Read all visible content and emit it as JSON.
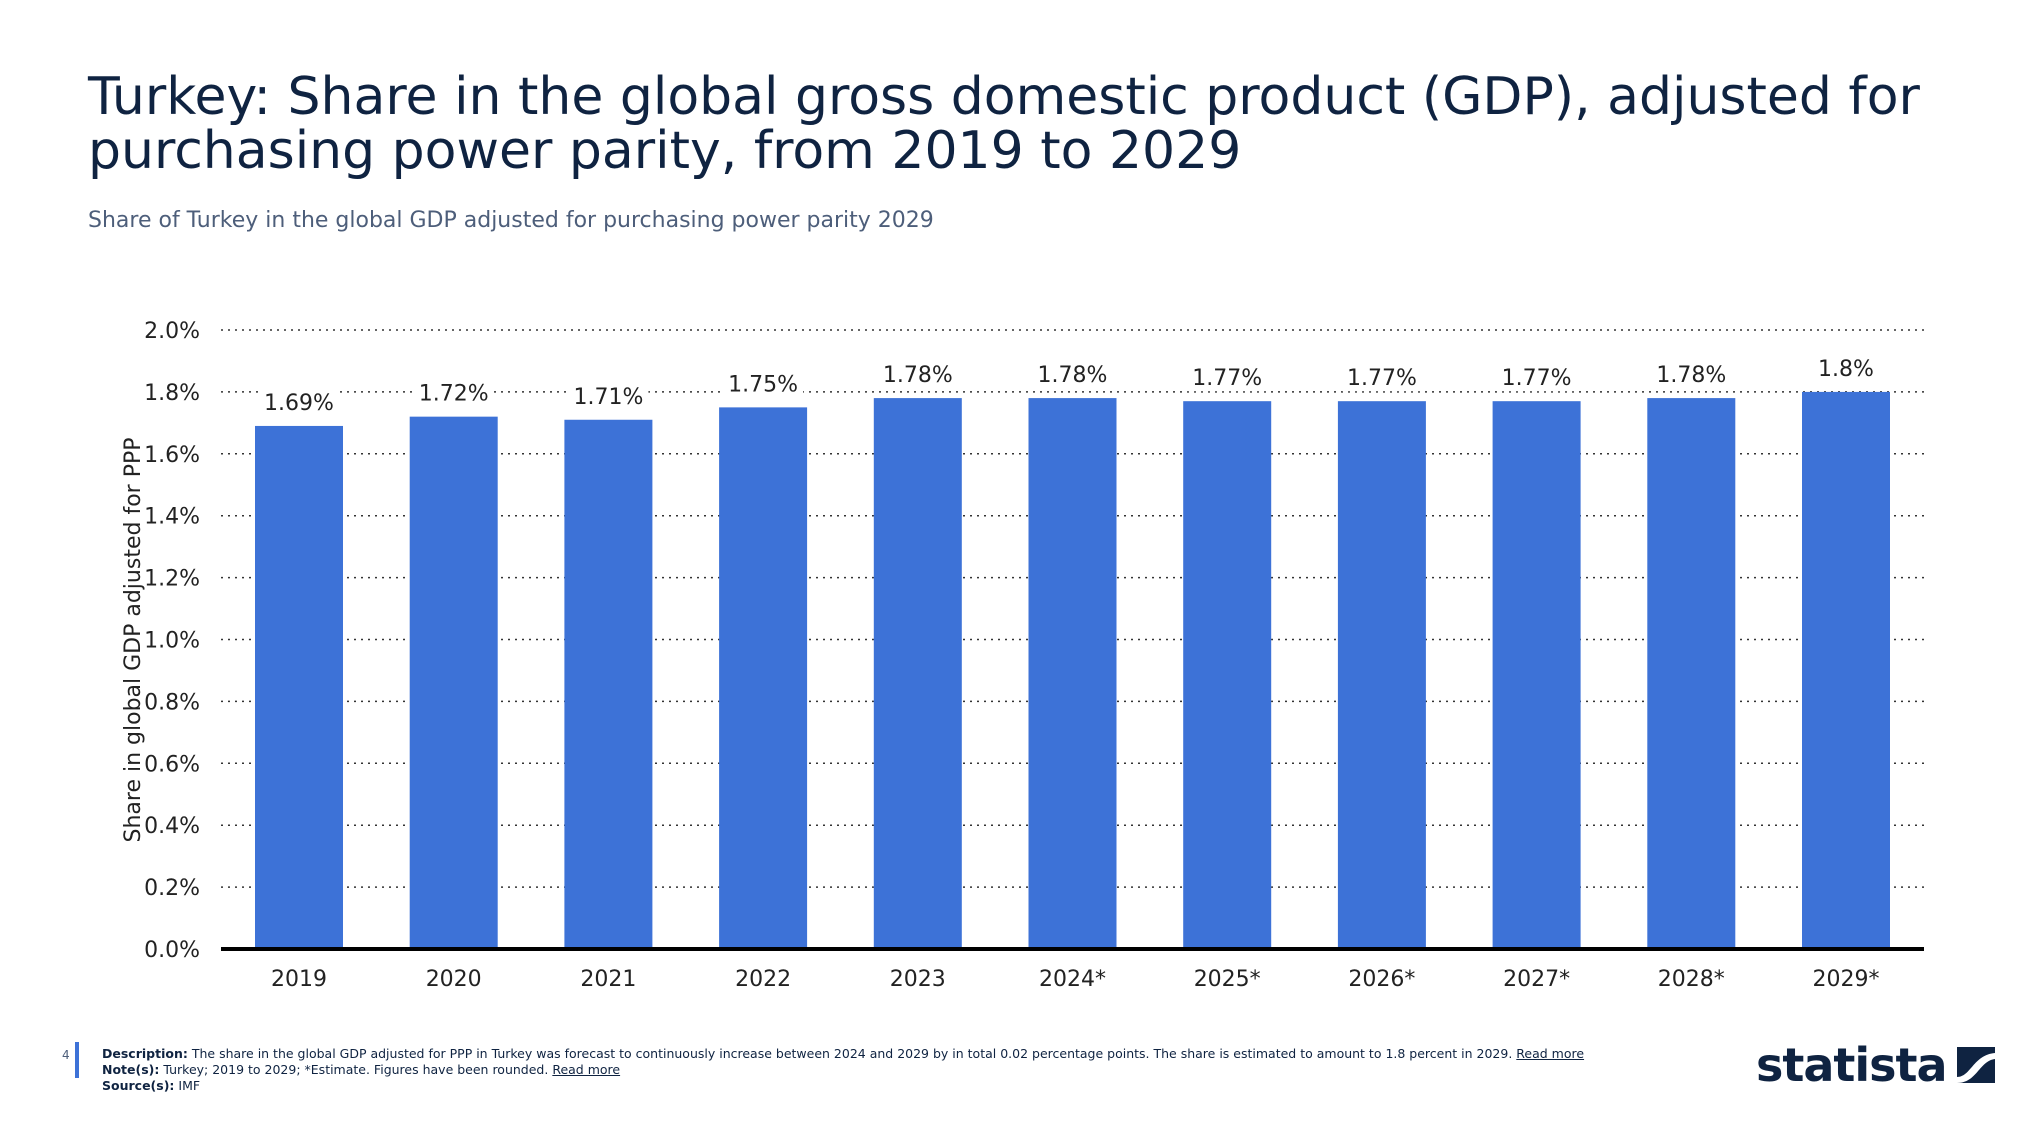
{
  "title": "Turkey: Share in the global gross domestic product (GDP), adjusted for purchasing power parity, from 2019 to 2029",
  "subtitle": "Share of Turkey in the global GDP adjusted for purchasing power parity 2029",
  "chart_data": {
    "type": "bar",
    "categories": [
      "2019",
      "2020",
      "2021",
      "2022",
      "2023",
      "2024*",
      "2025*",
      "2026*",
      "2027*",
      "2028*",
      "2029*"
    ],
    "values": [
      1.69,
      1.72,
      1.71,
      1.75,
      1.78,
      1.78,
      1.77,
      1.77,
      1.77,
      1.78,
      1.8
    ],
    "data_labels": [
      "1.69%",
      "1.72%",
      "1.71%",
      "1.75%",
      "1.78%",
      "1.78%",
      "1.77%",
      "1.77%",
      "1.77%",
      "1.78%",
      "1.8%"
    ],
    "ylabel": "Share in global GDP adjusted for PPP",
    "xlabel": "",
    "ylim": [
      0,
      2.0
    ],
    "yticks": [
      "0.0%",
      "0.2%",
      "0.4%",
      "0.6%",
      "0.8%",
      "1.0%",
      "1.2%",
      "1.4%",
      "1.6%",
      "1.8%",
      "2.0%"
    ],
    "grid": true,
    "bar_color": "#3d72d7"
  },
  "footer": {
    "page": "4",
    "description_label": "Description:",
    "description": "The share in the global GDP adjusted for PPP in Turkey was forecast to continuously increase between 2024 and 2029 by in total 0.02 percentage points. The share is estimated to amount to 1.8 percent in 2029.",
    "read_more": "Read more",
    "notes_label": "Note(s):",
    "notes": "Turkey; 2019 to 2029; *Estimate. Figures have been rounded.",
    "sources_label": "Source(s):",
    "sources": "IMF"
  },
  "logo": "statista"
}
